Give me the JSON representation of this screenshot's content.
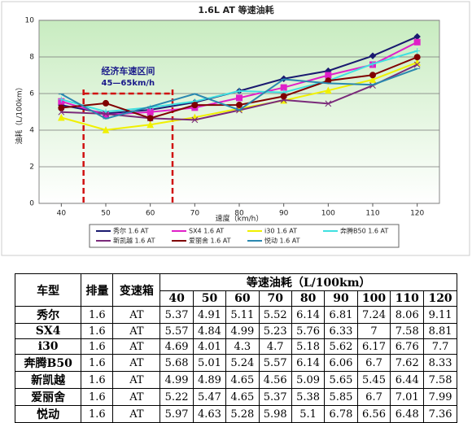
{
  "chart_data": {
    "type": "line",
    "title": "1.6L AT 等速油耗",
    "x_label": "速度（km/h）",
    "y_label": "油耗（L/100km）",
    "x": [
      40,
      50,
      60,
      70,
      80,
      90,
      100,
      110,
      120
    ],
    "xlim": [
      35,
      125
    ],
    "xticks": [
      40,
      50,
      60,
      70,
      80,
      90,
      100,
      110,
      120
    ],
    "ylim": [
      0,
      10
    ],
    "yticks": [
      0,
      2,
      4,
      6,
      8,
      10
    ],
    "grid": true,
    "annotation": {
      "text": "经济车速区间",
      "subtext": "45—65km/h",
      "x": [
        45,
        65
      ],
      "color": "#d01010"
    },
    "series": [
      {
        "name": "秀尔 1.6 AT",
        "color": "#1a1a70",
        "values": [
          5.37,
          4.91,
          5.11,
          5.52,
          6.14,
          6.81,
          7.24,
          8.06,
          9.11
        ]
      },
      {
        "name": "SX4 1.6 AT",
        "color": "#e020c8",
        "values": [
          5.57,
          4.84,
          4.99,
          5.23,
          5.76,
          6.33,
          7,
          7.58,
          8.81
        ]
      },
      {
        "name": "i30 1.6 AT",
        "color": "#f0f000",
        "values": [
          4.69,
          4.01,
          4.3,
          4.7,
          5.18,
          5.62,
          6.17,
          6.76,
          7.7
        ]
      },
      {
        "name": "奔腾B50 1.6 AT",
        "color": "#40e0e0",
        "values": [
          5.68,
          5.01,
          5.24,
          5.57,
          6.14,
          6.06,
          6.7,
          7.62,
          8.33
        ]
      },
      {
        "name": "新凯越 1.6 AT",
        "color": "#7a2a7a",
        "values": [
          4.99,
          4.89,
          4.65,
          4.56,
          5.09,
          5.65,
          5.45,
          6.44,
          7.58
        ]
      },
      {
        "name": "爱丽舍 1.6 AT",
        "color": "#800000",
        "values": [
          5.22,
          5.47,
          4.65,
          5.37,
          5.38,
          5.85,
          6.7,
          7.01,
          7.99
        ]
      },
      {
        "name": "悦动 1.6 AT",
        "color": "#2a88b0",
        "values": [
          5.97,
          4.63,
          5.28,
          5.98,
          5.1,
          6.78,
          6.56,
          6.48,
          7.36
        ]
      }
    ]
  },
  "table": {
    "headers": [
      "车型",
      "排量",
      "变速箱",
      "等速油耗（L/100km）"
    ],
    "rows": [
      {
        "model": "秀尔",
        "displacement": "1.6",
        "transmission": "AT"
      },
      {
        "model": "SX4",
        "displacement": "1.6",
        "transmission": "AT"
      },
      {
        "model": "i30",
        "displacement": "1.6",
        "transmission": "AT"
      },
      {
        "model": "奔腾B50",
        "displacement": "1.6",
        "transmission": "AT"
      },
      {
        "model": "新凯越",
        "displacement": "1.6",
        "transmission": "AT"
      },
      {
        "model": "爱丽舍",
        "displacement": "1.6",
        "transmission": "AT"
      },
      {
        "model": "悦动",
        "displacement": "1.6",
        "transmission": "AT"
      }
    ]
  }
}
